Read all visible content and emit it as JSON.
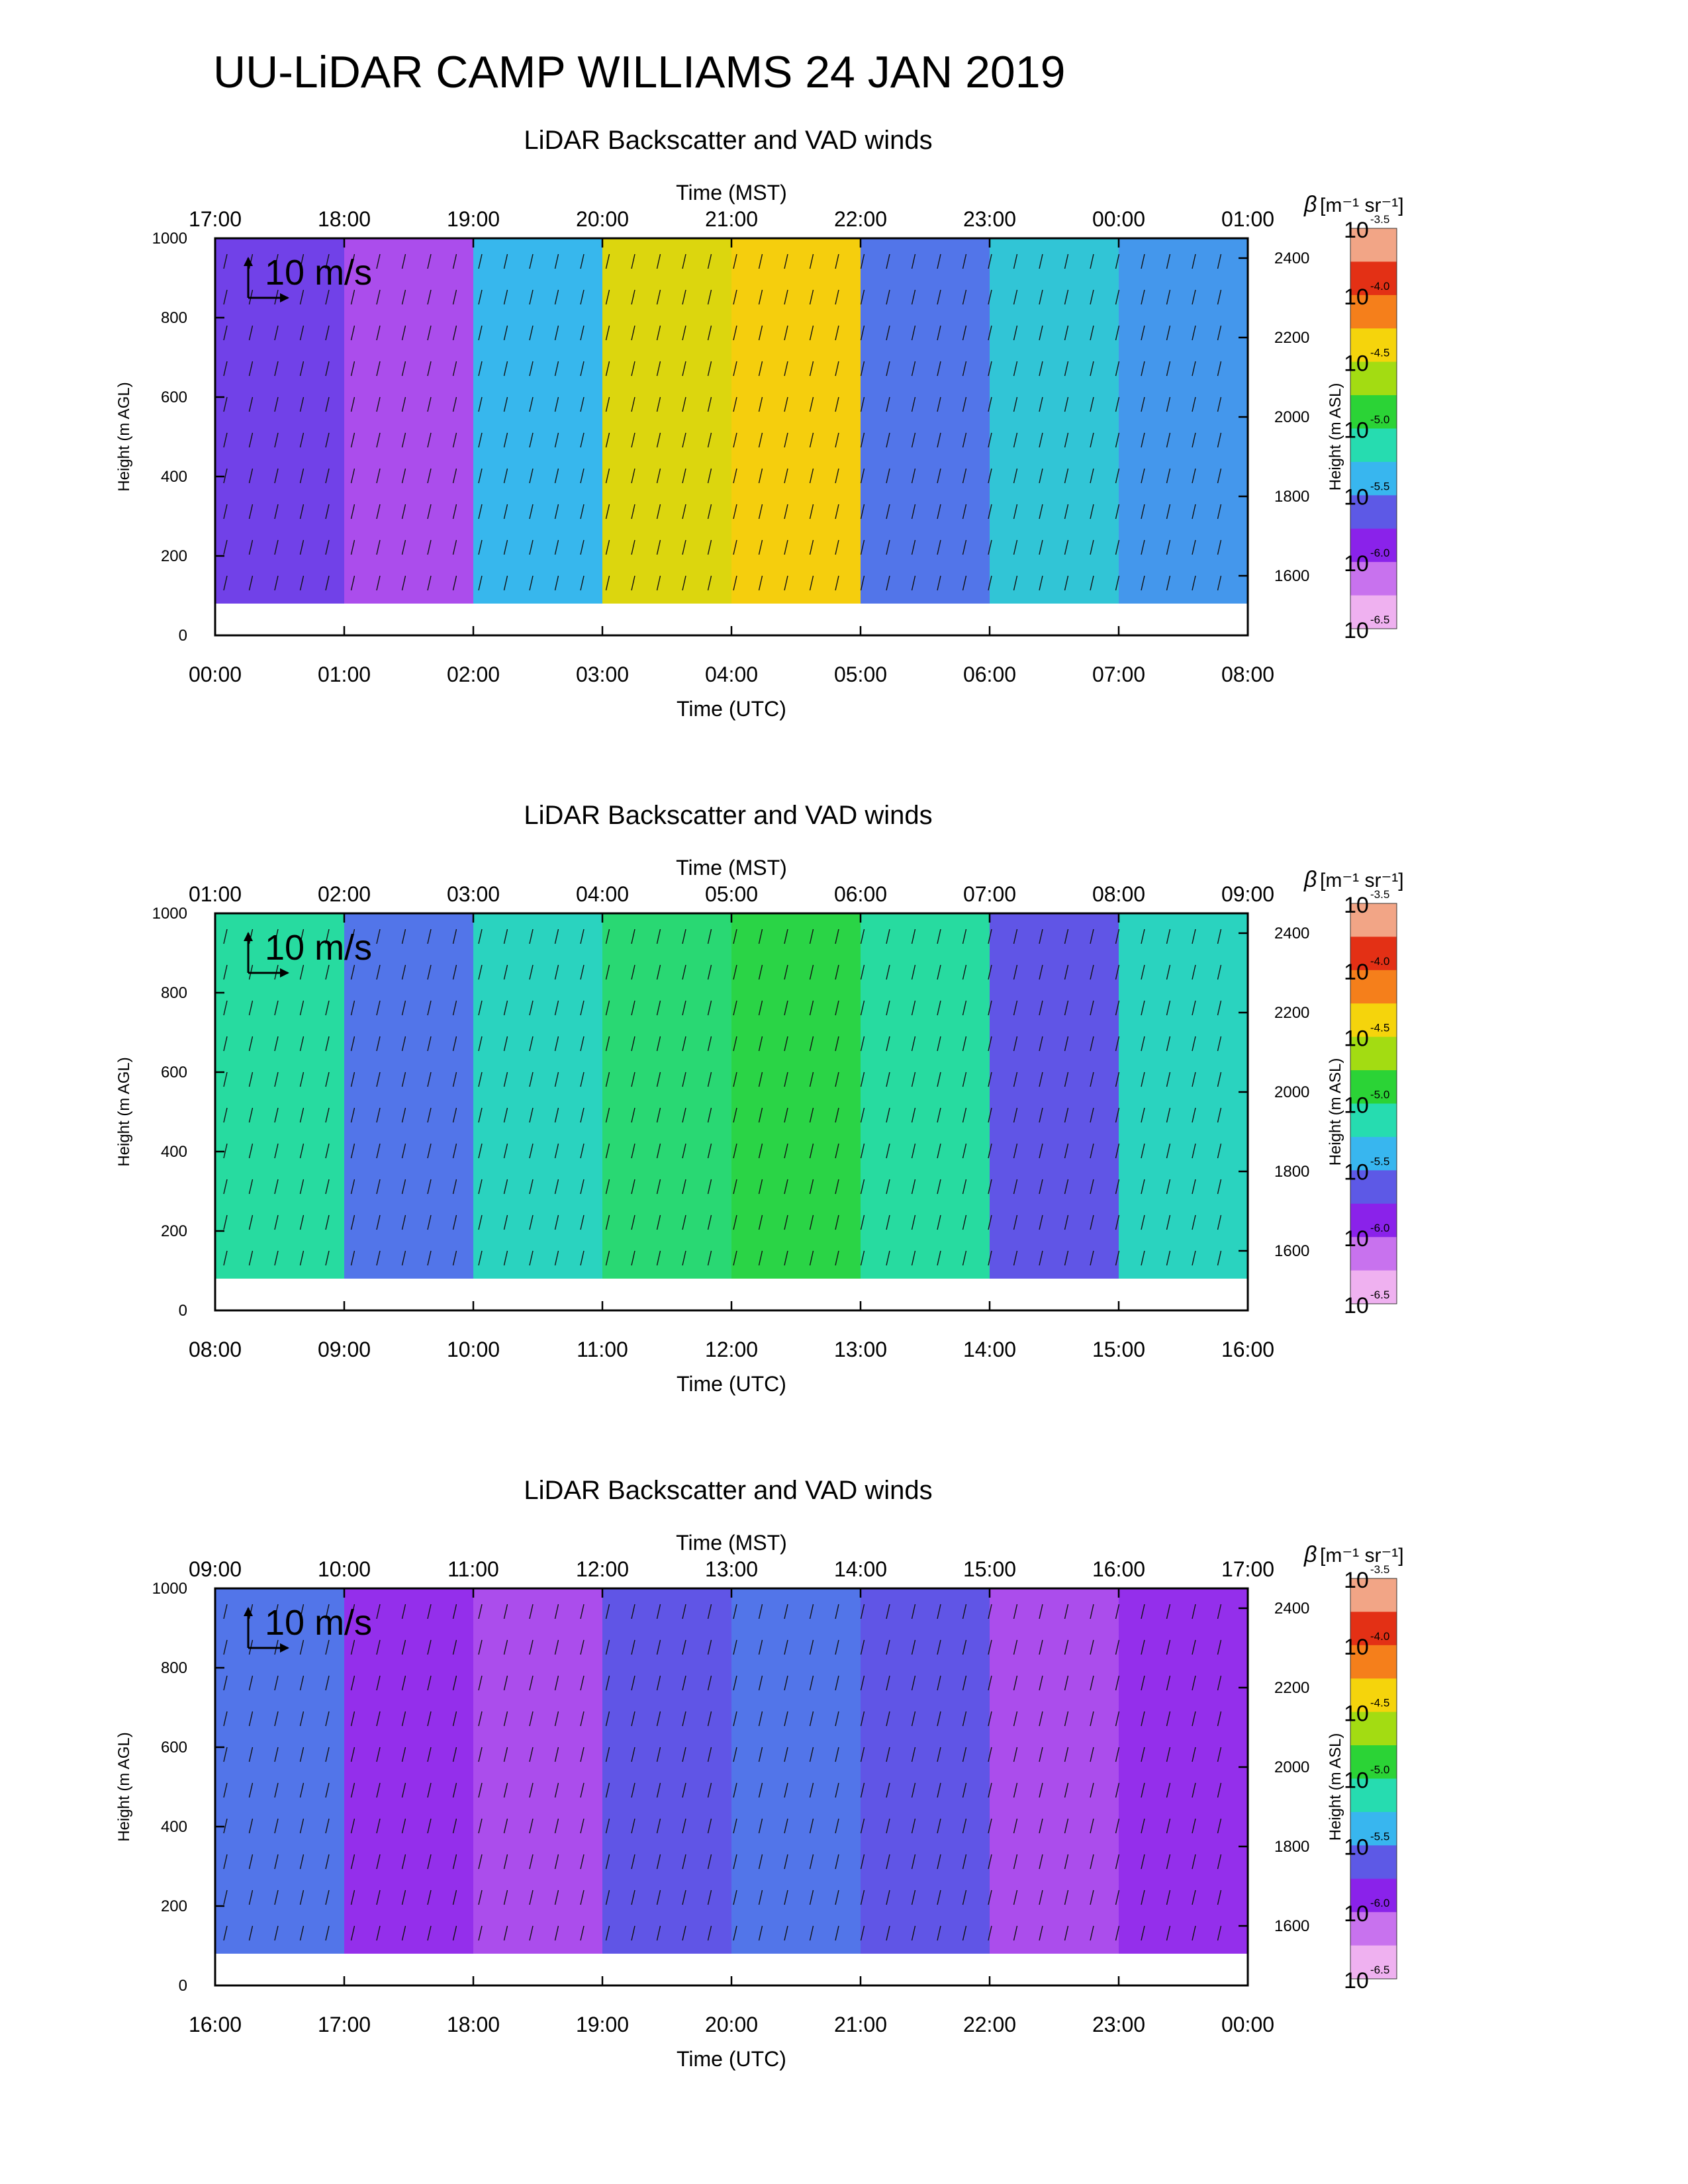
{
  "title": "UU-LiDAR CAMP WILLIAMS 24 JAN 2019",
  "colorbar": {
    "label_greek": "β",
    "label_units": "[m⁻¹ sr⁻¹]",
    "base": "10",
    "exponents": [
      "-3.5",
      "-4.0",
      "-4.5",
      "-5.0",
      "-5.5",
      "-6.0",
      "-6.5"
    ],
    "colors": [
      "#f2a586",
      "#e33015",
      "#f57f1b",
      "#f5d40c",
      "#a3dc12",
      "#2bd336",
      "#26dcb0",
      "#38b6ef",
      "#5d59e6",
      "#8a22ea",
      "#c872ee",
      "#efb1f0"
    ]
  },
  "vector_scale_label": "10 m/s",
  "labels": {
    "time_mst": "Time (MST)",
    "time_utc": "Time (UTC)",
    "height_agl": "Height (m AGL)",
    "height_asl": "Height (m ASL)"
  },
  "axes": {
    "agl_ticks": [
      "0",
      "200",
      "400",
      "600",
      "800",
      "1000"
    ],
    "asl_ticks": [
      "1600",
      "1800",
      "2000",
      "2200",
      "2400"
    ]
  },
  "chart_data": [
    {
      "type": "heatmap",
      "title": "LiDAR Backscatter and VAD winds",
      "xlabel": "Time (UTC)",
      "x2label": "Time (MST)",
      "ylabel": "Height (m AGL)",
      "y2label": "Height (m ASL)",
      "ylim": [
        0,
        1000
      ],
      "y2lim": [
        1450,
        2450
      ],
      "utc_ticks": [
        "00:00",
        "01:00",
        "02:00",
        "03:00",
        "04:00",
        "05:00",
        "06:00",
        "07:00",
        "08:00"
      ],
      "mst_ticks": [
        "17:00",
        "18:00",
        "19:00",
        "20:00",
        "21:00",
        "22:00",
        "23:00",
        "00:00",
        "01:00"
      ],
      "colorbar_range_log10": [
        -6.5,
        -3.5
      ],
      "backscatter_log10_by_hour": [
        {
          "utc": "00:00-01:00",
          "beta_log10": -5.8
        },
        {
          "utc": "01:00-02:00",
          "beta_log10": -6.1
        },
        {
          "utc": "02:00-03:00",
          "beta_log10": -5.4
        },
        {
          "utc": "03:00-04:00",
          "beta_log10": -4.4
        },
        {
          "utc": "04:00-05:00",
          "beta_log10": -4.3
        },
        {
          "utc": "05:00-06:00",
          "beta_log10": -5.6
        },
        {
          "utc": "06:00-07:00",
          "beta_log10": -5.3
        },
        {
          "utc": "07:00-08:00",
          "beta_log10": -5.5
        }
      ]
    },
    {
      "type": "heatmap",
      "title": "LiDAR Backscatter and VAD winds",
      "xlabel": "Time (UTC)",
      "x2label": "Time (MST)",
      "ylabel": "Height (m AGL)",
      "y2label": "Height (m ASL)",
      "ylim": [
        0,
        1000
      ],
      "y2lim": [
        1450,
        2450
      ],
      "utc_ticks": [
        "08:00",
        "09:00",
        "10:00",
        "11:00",
        "12:00",
        "13:00",
        "14:00",
        "15:00",
        "16:00"
      ],
      "mst_ticks": [
        "01:00",
        "02:00",
        "03:00",
        "04:00",
        "05:00",
        "06:00",
        "07:00",
        "08:00",
        "09:00"
      ],
      "colorbar_range_log10": [
        -6.5,
        -3.5
      ],
      "backscatter_log10_by_hour": [
        {
          "utc": "08:00-09:00",
          "beta_log10": -5.1
        },
        {
          "utc": "09:00-10:00",
          "beta_log10": -5.6
        },
        {
          "utc": "10:00-11:00",
          "beta_log10": -5.2
        },
        {
          "utc": "11:00-12:00",
          "beta_log10": -5.0
        },
        {
          "utc": "12:00-13:00",
          "beta_log10": -4.9
        },
        {
          "utc": "13:00-14:00",
          "beta_log10": -5.1
        },
        {
          "utc": "14:00-15:00",
          "beta_log10": -5.7
        },
        {
          "utc": "15:00-16:00",
          "beta_log10": -5.2
        }
      ]
    },
    {
      "type": "heatmap",
      "title": "LiDAR Backscatter and VAD winds",
      "xlabel": "Time (UTC)",
      "x2label": "Time (MST)",
      "ylabel": "Height (m AGL)",
      "y2label": "Height (m ASL)",
      "ylim": [
        0,
        1000
      ],
      "y2lim": [
        1450,
        2450
      ],
      "utc_ticks": [
        "16:00",
        "17:00",
        "18:00",
        "19:00",
        "20:00",
        "21:00",
        "22:00",
        "23:00",
        "00:00"
      ],
      "mst_ticks": [
        "09:00",
        "10:00",
        "11:00",
        "12:00",
        "13:00",
        "14:00",
        "15:00",
        "16:00",
        "17:00"
      ],
      "colorbar_range_log10": [
        -6.5,
        -3.5
      ],
      "backscatter_log10_by_hour": [
        {
          "utc": "16:00-17:00",
          "beta_log10": -5.6
        },
        {
          "utc": "17:00-18:00",
          "beta_log10": -6.0
        },
        {
          "utc": "18:00-19:00",
          "beta_log10": -6.1
        },
        {
          "utc": "19:00-20:00",
          "beta_log10": -5.7
        },
        {
          "utc": "20:00-21:00",
          "beta_log10": -5.6
        },
        {
          "utc": "21:00-22:00",
          "beta_log10": -5.7
        },
        {
          "utc": "22:00-23:00",
          "beta_log10": -6.1
        },
        {
          "utc": "23:00-00:00",
          "beta_log10": -6.0
        }
      ]
    }
  ]
}
